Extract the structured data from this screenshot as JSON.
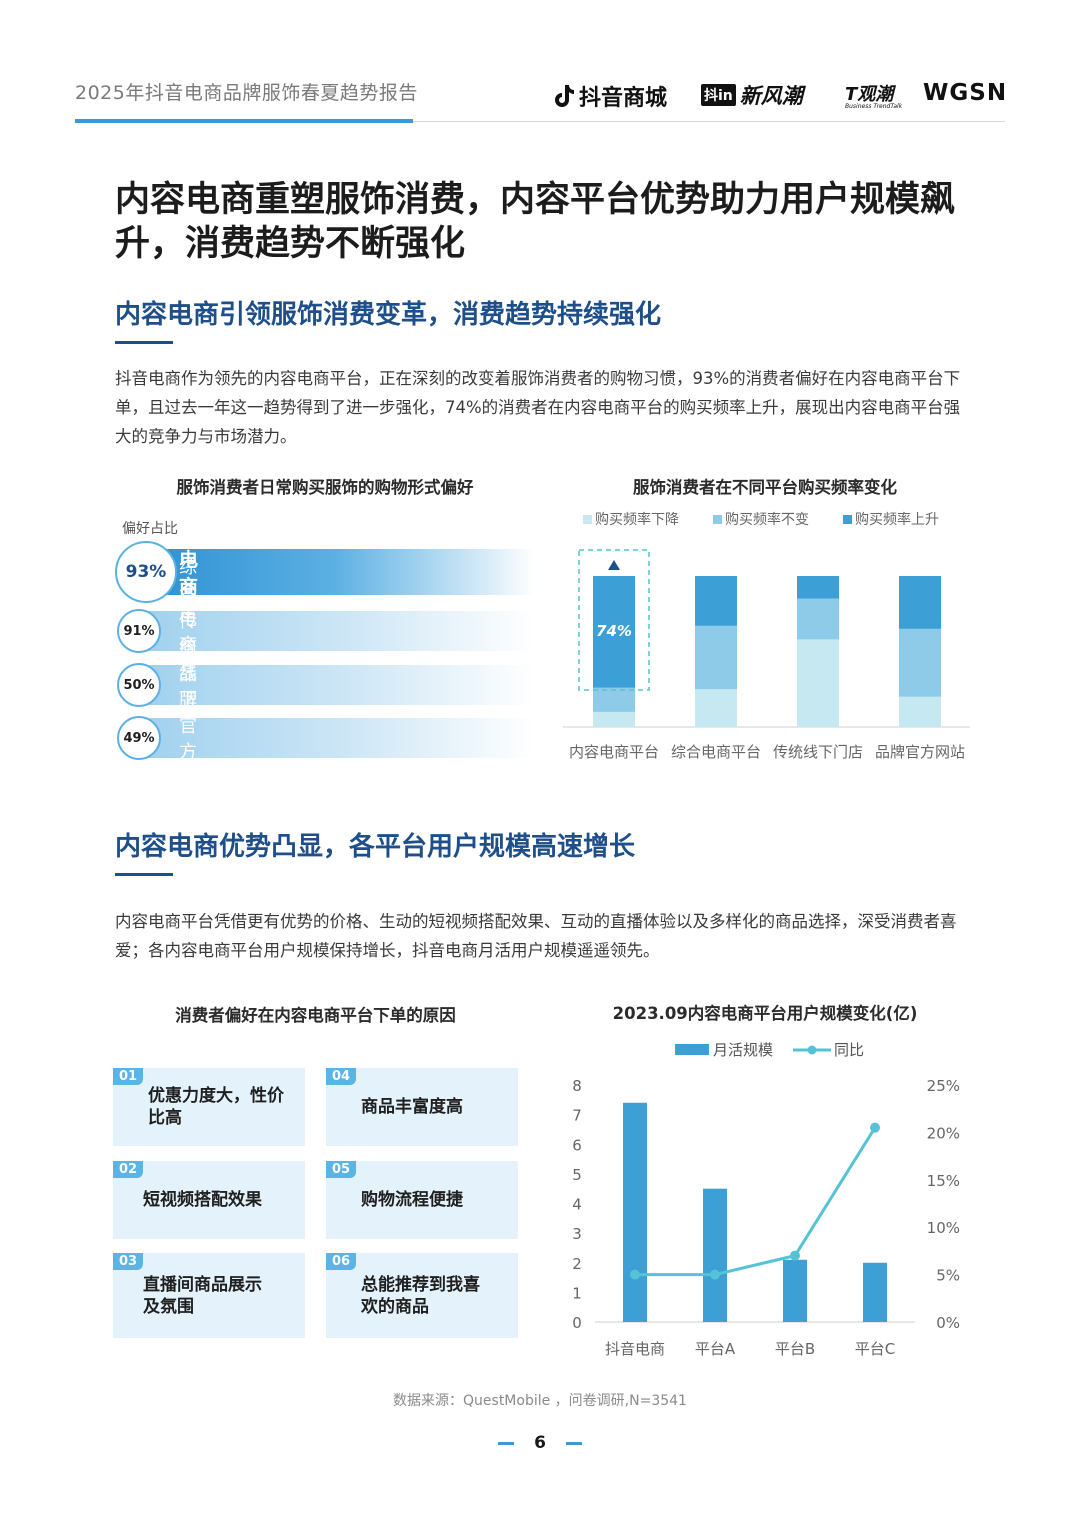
{
  "header": {
    "report_title": "2025年抖音电商品牌服饰春夏趋势报告",
    "logos": {
      "douyin": "抖音商城",
      "xinfengchao_mark": "抖in",
      "xinfengchao": "新风潮",
      "tguanchao": "T观潮",
      "tguanchao_sub": "Business TrendTalk",
      "wgsn": "WGSN"
    }
  },
  "main_title": "内容电商重塑服饰消费，内容平台优势助力用户规模飙升，消费趋势不断强化",
  "section1": {
    "title": "内容电商引领服饰消费变革，消费趋势持续强化",
    "paragraph": "抖音电商作为领先的内容电商平台，正在深刻的改变着服饰消费者的购物习惯，93%的消费者偏好在内容电商平台下单，且过去一年这一趋势得到了进一步强化，74%的消费者在内容电商平台的购买频率上升，展现出内容电商平台强大的竞争力与市场潜力。"
  },
  "section2": {
    "title": "内容电商优势凸显，各平台用户规模高速增长",
    "paragraph": "内容电商平台凭借更有优势的价格、生动的短视频搭配效果、互动的直播体验以及多样化的商品选择，深受消费者喜爱；各内容电商平台用户规模保持增长，抖音电商月活用户规模遥遥领先。"
  },
  "reasons": {
    "title": "消费者偏好在内容电商平台下单的原因",
    "items": [
      {
        "num": "01",
        "text": "优惠力度大，性价比高"
      },
      {
        "num": "04",
        "text": "商品丰富度高"
      },
      {
        "num": "02",
        "text": "短视频搭配效果"
      },
      {
        "num": "05",
        "text": "购物流程便捷"
      },
      {
        "num": "03",
        "text": "直播间商品展示及氛围"
      },
      {
        "num": "06",
        "text": "总能推荐到我喜欢的商品"
      }
    ]
  },
  "chart_data": [
    {
      "type": "bar",
      "title": "服饰消费者日常购买服饰的购物形式偏好",
      "ylabel": "偏好占比",
      "categories": [
        "内容电商平台",
        "综合电商平台",
        "传统线下门店",
        "品牌官方网站"
      ],
      "value_labels": [
        "93%",
        "91%",
        "50%",
        "49%"
      ],
      "values": [
        93,
        91,
        50,
        49
      ]
    },
    {
      "type": "bar",
      "stacked": true,
      "title": "服饰消费者在不同平台购买频率变化",
      "categories": [
        "内容电商平台",
        "综合电商平台",
        "传统线下门店",
        "品牌官方网站"
      ],
      "series": [
        {
          "name": "购买频率下降",
          "color": "#c6e8f0",
          "values": [
            10,
            25,
            58,
            20
          ]
        },
        {
          "name": "购买频率不变",
          "color": "#8ecbe8",
          "values": [
            16,
            42,
            27,
            45
          ]
        },
        {
          "name": "购买频率上升",
          "color": "#3c9fd6",
          "values": [
            74,
            33,
            15,
            35
          ]
        }
      ],
      "annotation": "74%",
      "legend": "top"
    },
    {
      "type": "bar",
      "title": "2023.09内容电商平台用户规模变化(亿)",
      "categories": [
        "抖音电商",
        "平台A",
        "平台B",
        "平台C"
      ],
      "series": [
        {
          "name": "月活规模",
          "type": "bar",
          "color": "#3c9fd6",
          "axis": "left",
          "values": [
            7.4,
            4.5,
            2.1,
            2.0
          ]
        },
        {
          "name": "同比",
          "type": "line",
          "color": "#56c2d6",
          "axis": "right",
          "values": [
            5,
            5,
            7,
            20.5
          ]
        }
      ],
      "y_left": {
        "min": 0,
        "max": 8,
        "ticks": [
          "0",
          "1",
          "2",
          "3",
          "4",
          "5",
          "6",
          "7",
          "8"
        ]
      },
      "y_right": {
        "min": 0,
        "max": 25,
        "ticks": [
          "0%",
          "5%",
          "10%",
          "15%",
          "20%",
          "25%"
        ]
      },
      "legend": "top"
    }
  ],
  "footer": {
    "source": "数据来源：QuestMobile ，问卷调研,N=3541",
    "page": "6"
  }
}
